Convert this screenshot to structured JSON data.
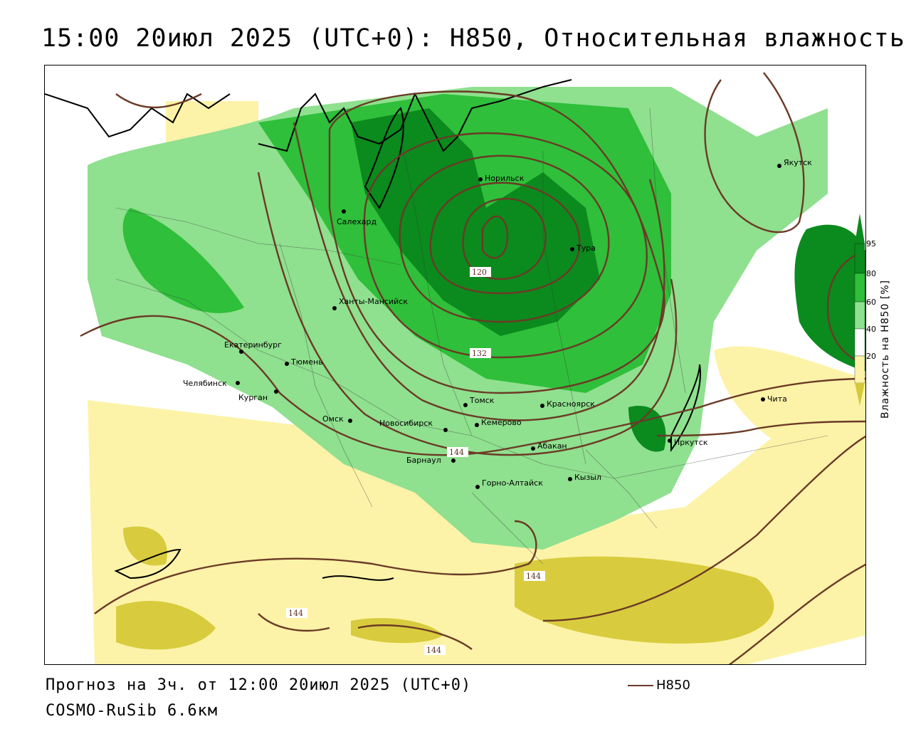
{
  "title": "15:00 20июл 2025 (UTC+0): H850, Относительная влажность",
  "footer": {
    "forecast": "Прогноз на 3ч. от 12:00 20июл 2025 (UTC+0)",
    "model": "COSMO-RuSib 6.6км"
  },
  "legend": {
    "line_label": "H850",
    "line_color": "#6b3a26"
  },
  "colorbar": {
    "title": "Влажность на H850 [%]",
    "ticks": [
      "95",
      "80",
      "60",
      "40",
      "20"
    ],
    "colors": {
      "c95": "#0b8a1e",
      "c80": "#2fbf3a",
      "c60": "#8fe08f",
      "c40": "#ffffff",
      "c20": "#fdf3a8",
      "c0": "#d6c93a"
    }
  },
  "cities": [
    {
      "name": "Норильск"
    },
    {
      "name": "Якутск"
    },
    {
      "name": "Салехард"
    },
    {
      "name": "Тура"
    },
    {
      "name": "Ханты-Мансийск"
    },
    {
      "name": "Екатеринбург"
    },
    {
      "name": "Тюмень"
    },
    {
      "name": "Челябинск"
    },
    {
      "name": "Курган"
    },
    {
      "name": "Омск"
    },
    {
      "name": "Новосибирск"
    },
    {
      "name": "Томск"
    },
    {
      "name": "Кемерово"
    },
    {
      "name": "Красноярск"
    },
    {
      "name": "Барнаул"
    },
    {
      "name": "Абакан"
    },
    {
      "name": "Иркутск"
    },
    {
      "name": "Чита"
    },
    {
      "name": "Кызыл"
    },
    {
      "name": "Горно-Алтайск"
    }
  ],
  "contour_labels": [
    "120",
    "132",
    "144",
    "144",
    "144",
    "144"
  ]
}
